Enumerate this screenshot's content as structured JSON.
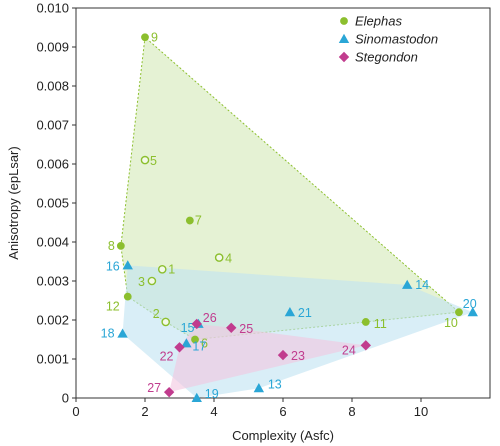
{
  "chart_data": {
    "type": "scatter",
    "title": "",
    "xlabel": "Complexity (Asfc)",
    "ylabel": "Anisotropy (epLsar)",
    "xlim": [
      0,
      12
    ],
    "ylim": [
      0,
      0.01
    ],
    "x_ticks": [
      "0",
      "2",
      "4",
      "6",
      "8",
      "10"
    ],
    "y_ticks": [
      "0",
      "0.001",
      "0.002",
      "0.003",
      "0.004",
      "0.005",
      "0.006",
      "0.007",
      "0.008",
      "0.009",
      "0.010"
    ],
    "grid": false,
    "legend_position": "top-right",
    "series": [
      {
        "name": "Elephas",
        "marker": "circle",
        "color": "#8cbf2e",
        "hull_fill": "#cfe7b0",
        "points": [
          {
            "id": "1",
            "x": 2.5,
            "y": 0.0033,
            "style": "open"
          },
          {
            "id": "2",
            "x": 2.6,
            "y": 0.00195,
            "style": "open"
          },
          {
            "id": "3",
            "x": 2.2,
            "y": 0.003,
            "style": "open"
          },
          {
            "id": "4",
            "x": 4.15,
            "y": 0.0036,
            "style": "open"
          },
          {
            "id": "5",
            "x": 2.0,
            "y": 0.0061,
            "style": "open"
          },
          {
            "id": "6",
            "x": 3.45,
            "y": 0.0015,
            "style": "filled"
          },
          {
            "id": "7",
            "x": 3.3,
            "y": 0.00455,
            "style": "filled"
          },
          {
            "id": "8",
            "x": 1.3,
            "y": 0.0039,
            "style": "filled"
          },
          {
            "id": "9",
            "x": 2.0,
            "y": 0.00925,
            "style": "filled"
          },
          {
            "id": "10",
            "x": 11.1,
            "y": 0.0022,
            "style": "filled"
          },
          {
            "id": "11",
            "x": 8.4,
            "y": 0.00195,
            "style": "filled"
          },
          {
            "id": "12",
            "x": 1.5,
            "y": 0.0026,
            "style": "filled"
          }
        ]
      },
      {
        "name": "Sinomastodon",
        "marker": "triangle",
        "color": "#2aa6d6",
        "hull_fill": "#bfe3f2",
        "points": [
          {
            "id": "13",
            "x": 5.3,
            "y": 0.00025
          },
          {
            "id": "14",
            "x": 9.6,
            "y": 0.0029
          },
          {
            "id": "15",
            "x": 3.55,
            "y": 0.0019
          },
          {
            "id": "16",
            "x": 1.5,
            "y": 0.0034
          },
          {
            "id": "17",
            "x": 3.2,
            "y": 0.0014
          },
          {
            "id": "18",
            "x": 1.35,
            "y": 0.00165
          },
          {
            "id": "19",
            "x": 3.5,
            "y": 0.0
          },
          {
            "id": "20",
            "x": 11.5,
            "y": 0.0022
          },
          {
            "id": "21",
            "x": 6.2,
            "y": 0.0022
          }
        ]
      },
      {
        "name": "Stegondon",
        "marker": "diamond",
        "color": "#c13c8e",
        "hull_fill": "#f2c6e0",
        "points": [
          {
            "id": "22",
            "x": 3.0,
            "y": 0.0013
          },
          {
            "id": "23",
            "x": 6.0,
            "y": 0.0011
          },
          {
            "id": "24",
            "x": 8.4,
            "y": 0.00135
          },
          {
            "id": "25",
            "x": 4.5,
            "y": 0.0018
          },
          {
            "id": "26",
            "x": 3.5,
            "y": 0.0019
          },
          {
            "id": "27",
            "x": 2.7,
            "y": 0.00015
          }
        ]
      }
    ]
  }
}
